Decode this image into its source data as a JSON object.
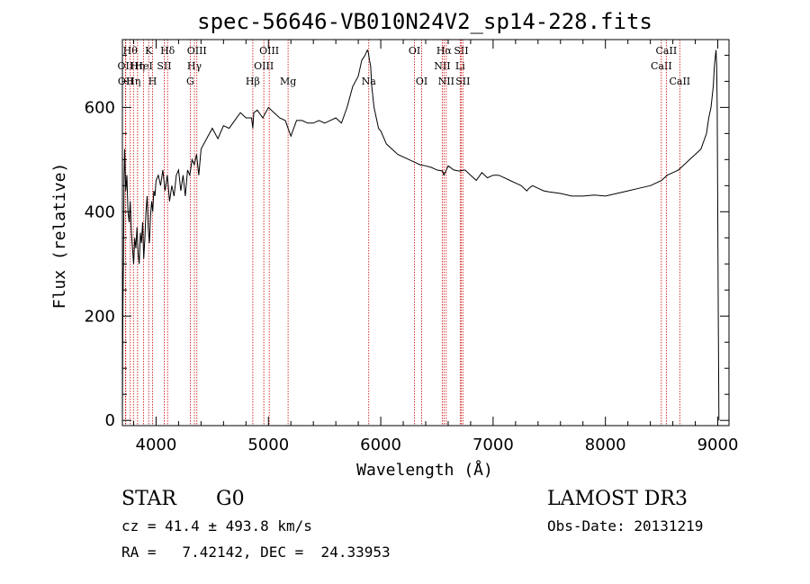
{
  "chart_data": {
    "type": "line",
    "title": "spec-56646-VB010N24V2_sp14-228.fits",
    "xlabel": "Wavelength (Å)",
    "ylabel": "Flux (relative)",
    "xlim": [
      3700,
      9100
    ],
    "ylim": [
      -10,
      730
    ],
    "x_ticks": [
      4000,
      5000,
      6000,
      7000,
      8000,
      9000
    ],
    "y_ticks": [
      0,
      200,
      400,
      600
    ],
    "grid": false,
    "line_color": "#000000",
    "marker_line_color": "#cc0000",
    "series": [
      {
        "x": [
          3700,
          3705,
          3710,
          3715,
          3720,
          3725,
          3730,
          3740,
          3750,
          3760,
          3770,
          3780,
          3790,
          3800,
          3810,
          3820,
          3830,
          3840,
          3850,
          3860,
          3870,
          3880,
          3890,
          3900,
          3910,
          3920,
          3930,
          3940,
          3950,
          3960,
          3970,
          3980,
          3990,
          4000,
          4020,
          4040,
          4060,
          4080,
          4100,
          4120,
          4140,
          4160,
          4180,
          4200,
          4220,
          4240,
          4260,
          4280,
          4300,
          4320,
          4340,
          4360,
          4380,
          4400,
          4450,
          4500,
          4550,
          4600,
          4650,
          4700,
          4750,
          4800,
          4850,
          4861,
          4870,
          4900,
          4950,
          5000,
          5050,
          5100,
          5150,
          5175,
          5200,
          5250,
          5300,
          5350,
          5400,
          5450,
          5500,
          5550,
          5600,
          5650,
          5700,
          5750,
          5800,
          5830,
          5860,
          5880,
          5890,
          5900,
          5910,
          5920,
          5940,
          5960,
          5980,
          6000,
          6050,
          6100,
          6150,
          6200,
          6250,
          6300,
          6350,
          6400,
          6450,
          6500,
          6550,
          6563,
          6600,
          6650,
          6700,
          6750,
          6800,
          6850,
          6900,
          6950,
          7000,
          7050,
          7100,
          7150,
          7200,
          7250,
          7300,
          7320,
          7350,
          7400,
          7450,
          7500,
          7600,
          7700,
          7800,
          7900,
          8000,
          8100,
          8200,
          8300,
          8400,
          8450,
          8500,
          8550,
          8600,
          8650,
          8700,
          8750,
          8800,
          8850,
          8900,
          8920,
          8940,
          8960,
          8970,
          8980,
          8985,
          8990,
          8995,
          9000,
          9005,
          9010
        ],
        "y": [
          10,
          220,
          310,
          470,
          520,
          480,
          440,
          470,
          400,
          380,
          420,
          360,
          330,
          300,
          350,
          330,
          370,
          320,
          300,
          360,
          340,
          380,
          310,
          350,
          400,
          430,
          370,
          340,
          390,
          420,
          400,
          440,
          430,
          460,
          470,
          450,
          480,
          440,
          470,
          420,
          450,
          430,
          470,
          480,
          440,
          470,
          430,
          480,
          470,
          500,
          490,
          510,
          470,
          520,
          540,
          560,
          540,
          565,
          560,
          575,
          590,
          580,
          580,
          560,
          590,
          595,
          580,
          600,
          590,
          580,
          575,
          560,
          545,
          575,
          575,
          570,
          570,
          575,
          570,
          575,
          580,
          570,
          600,
          640,
          660,
          690,
          700,
          710,
          705,
          690,
          680,
          640,
          600,
          580,
          560,
          555,
          530,
          520,
          510,
          505,
          500,
          495,
          490,
          488,
          485,
          480,
          478,
          470,
          488,
          480,
          478,
          480,
          470,
          460,
          475,
          465,
          470,
          470,
          465,
          460,
          455,
          450,
          440,
          445,
          450,
          445,
          440,
          438,
          435,
          430,
          430,
          432,
          430,
          435,
          440,
          445,
          450,
          455,
          460,
          470,
          475,
          480,
          490,
          500,
          510,
          520,
          550,
          580,
          600,
          640,
          680,
          700,
          710,
          680,
          600,
          400,
          200,
          0
        ]
      }
    ],
    "line_markers": [
      {
        "wl": 3727,
        "label": "OII",
        "row": 2
      },
      {
        "wl": 3730,
        "label": "OII",
        "row": 3
      },
      {
        "wl": 3770,
        "label": "Hθ",
        "row": 1
      },
      {
        "wl": 3798,
        "label": "Hη",
        "row": 3
      },
      {
        "wl": 3835,
        "label": "Hη",
        "row": 2
      },
      {
        "wl": 3889,
        "label": "HeI",
        "row": 2
      },
      {
        "wl": 3934,
        "label": "K",
        "row": 1
      },
      {
        "wl": 3969,
        "label": "H",
        "row": 3
      },
      {
        "wl": 4072,
        "label": "SII",
        "row": 2
      },
      {
        "wl": 4102,
        "label": "Hδ",
        "row": 1
      },
      {
        "wl": 4304,
        "label": "G",
        "row": 3
      },
      {
        "wl": 4341,
        "label": "Hγ",
        "row": 2
      },
      {
        "wl": 4363,
        "label": "OIII",
        "row": 1
      },
      {
        "wl": 4861,
        "label": "Hβ",
        "row": 3
      },
      {
        "wl": 4959,
        "label": "OIII",
        "row": 2
      },
      {
        "wl": 5007,
        "label": "OIII",
        "row": 1
      },
      {
        "wl": 5175,
        "label": "Mg",
        "row": 3
      },
      {
        "wl": 5893,
        "label": "Na",
        "row": 3
      },
      {
        "wl": 6300,
        "label": "OI",
        "row": 1
      },
      {
        "wl": 6364,
        "label": "OI",
        "row": 3
      },
      {
        "wl": 6548,
        "label": "NII",
        "row": 2
      },
      {
        "wl": 6563,
        "label": "Hα",
        "row": 1
      },
      {
        "wl": 6583,
        "label": "NII",
        "row": 3
      },
      {
        "wl": 6707,
        "label": "Li",
        "row": 2
      },
      {
        "wl": 6716,
        "label": "SII",
        "row": 1
      },
      {
        "wl": 6731,
        "label": "SII",
        "row": 3
      },
      {
        "wl": 8498,
        "label": "CaII",
        "row": 2
      },
      {
        "wl": 8542,
        "label": "CaII",
        "row": 1
      },
      {
        "wl": 8662,
        "label": "CaII",
        "row": 3
      }
    ]
  },
  "info": {
    "object_class": "STAR",
    "subclass": "G0",
    "survey": "LAMOST DR3",
    "redshift": "cz = 41.4 ± 493.8 km/s",
    "obs_date": "Obs-Date: 20131219",
    "coords": "RA =   7.42142, DEC =  24.33953"
  }
}
